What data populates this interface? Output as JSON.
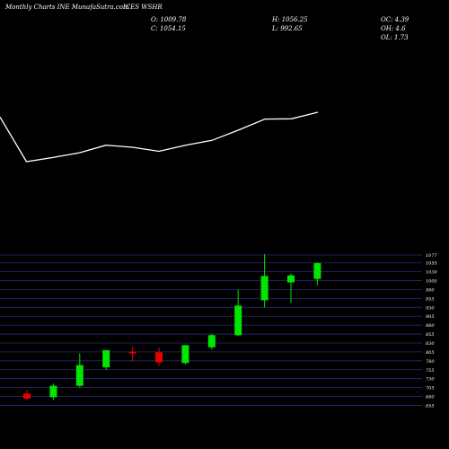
{
  "header": {
    "source": "Monthly Charts INE MunafaSutra.com",
    "symbol": "ICES WSHR",
    "o": "O: 1009.78",
    "c": "C: 1054.15",
    "h": "H: 1056.25",
    "l": "L: 992.65",
    "oc": "OC: 4.39",
    "oh": "OH: 4.6",
    "ol": "OL: 1.73"
  },
  "colors": {
    "background": "#000000",
    "bullish": "#00e600",
    "bearish": "#e60000",
    "grid": "#2a2a7a",
    "line": "#ffffff",
    "text": "#ffffff"
  },
  "chart_data": [
    {
      "type": "line",
      "y_values": [
        1030,
        900,
        912,
        926,
        948,
        942,
        930,
        948,
        962,
        992,
        1024,
        1025,
        1044
      ]
    },
    {
      "type": "candlestick",
      "yticks": [
        655,
        680,
        705,
        730,
        755,
        780,
        805,
        830,
        855,
        880,
        905,
        930,
        955,
        980,
        1005,
        1030,
        1055,
        1077
      ],
      "ylim": [
        646,
        1082
      ],
      "candles": [
        {
          "o": 688,
          "h": 699,
          "l": 670,
          "c": 674
        },
        {
          "o": 678,
          "h": 716,
          "l": 670,
          "c": 710
        },
        {
          "o": 710,
          "h": 801,
          "l": 706,
          "c": 768
        },
        {
          "o": 762,
          "h": 810,
          "l": 755,
          "c": 810
        },
        {
          "o": 806,
          "h": 820,
          "l": 778,
          "c": 804
        },
        {
          "o": 804,
          "h": 818,
          "l": 765,
          "c": 776
        },
        {
          "o": 774,
          "h": 824,
          "l": 770,
          "c": 824
        },
        {
          "o": 818,
          "h": 856,
          "l": 812,
          "c": 852
        },
        {
          "o": 852,
          "h": 980,
          "l": 850,
          "c": 935
        },
        {
          "o": 950,
          "h": 1080,
          "l": 930,
          "c": 1018
        },
        {
          "o": 1000,
          "h": 1025,
          "l": 942,
          "c": 1020
        },
        {
          "o": 1009.78,
          "h": 1056.25,
          "l": 992.65,
          "c": 1054.15
        }
      ]
    }
  ]
}
